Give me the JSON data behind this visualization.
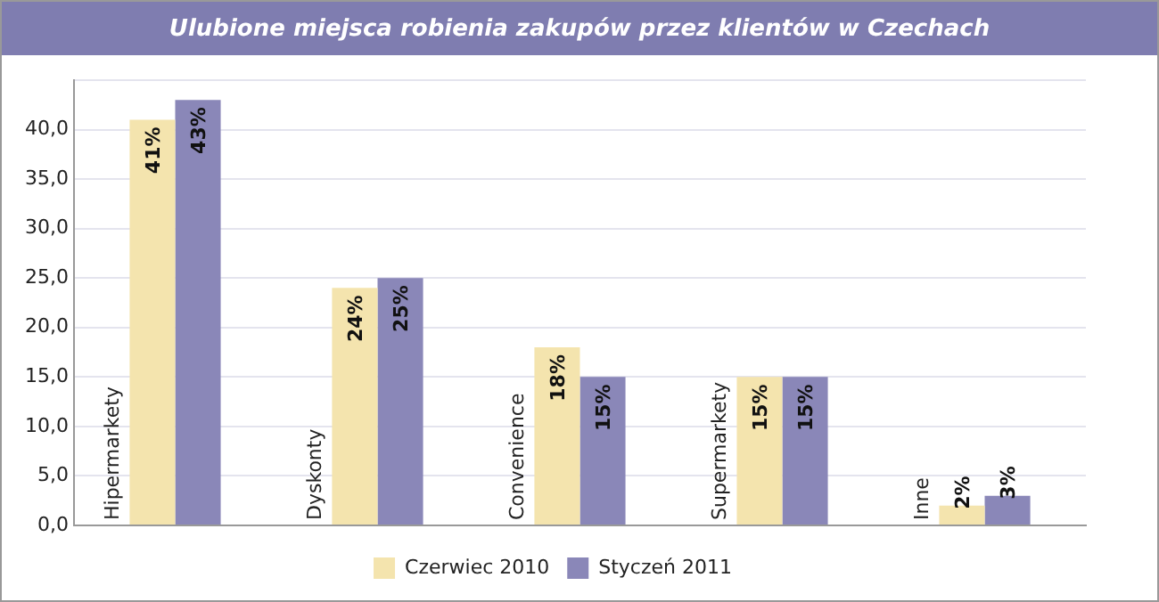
{
  "chart_data": {
    "type": "bar",
    "title": "Ulubione miejsca robienia zakupów przez klientów w Czechach",
    "categories": [
      "Hipermarkety",
      "Dyskonty",
      "Convenience",
      "Supermarkety",
      "Inne"
    ],
    "series": [
      {
        "name": "Czerwiec 2010",
        "color": "#f4e4ae",
        "values": [
          41,
          24,
          18,
          15,
          2
        ],
        "value_labels": [
          "41%",
          "24%",
          "18%",
          "15%",
          "2%"
        ]
      },
      {
        "name": "Styczeń 2011",
        "color": "#8a87b8",
        "values": [
          43,
          25,
          15,
          15,
          3
        ],
        "value_labels": [
          "43%",
          "25%",
          "15%",
          "15%",
          "3%"
        ]
      }
    ],
    "ylim": [
      0,
      45
    ],
    "yticks": [
      {
        "value": 0,
        "label": "0,0"
      },
      {
        "value": 5,
        "label": "5,0"
      },
      {
        "value": 10,
        "label": "10,0"
      },
      {
        "value": 15,
        "label": "15,0"
      },
      {
        "value": 20,
        "label": "20,0"
      },
      {
        "value": 25,
        "label": "25,0"
      },
      {
        "value": 30,
        "label": "30,0"
      },
      {
        "value": 35,
        "label": "35,0"
      },
      {
        "value": 40,
        "label": "40,0"
      },
      {
        "value": 45,
        "label": null
      }
    ],
    "grid": "y",
    "legend": "bottom"
  }
}
